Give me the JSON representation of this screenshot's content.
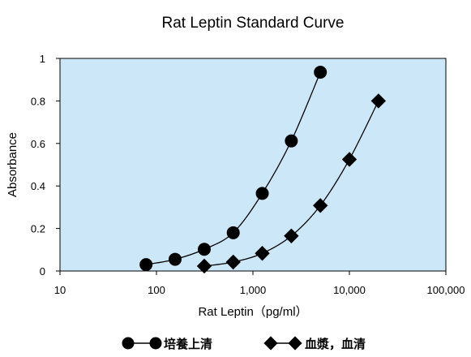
{
  "chart_data": {
    "type": "scatter",
    "title": "Rat Leptin Standard Curve",
    "xlabel": "Rat Leptin（pg/ml）",
    "ylabel": "Absorbance",
    "x_scale": "log",
    "xlim": [
      10,
      100000
    ],
    "ylim": [
      0,
      1
    ],
    "x_ticks": [
      "10",
      "100",
      "1,000",
      "10,000",
      "100,000"
    ],
    "y_ticks": [
      "0",
      "0.2",
      "0.4",
      "0.6",
      "0.8",
      "1"
    ],
    "grid": false,
    "legend_position": "bottom",
    "series": [
      {
        "name": "培養上清",
        "marker": "circle",
        "x": [
          78,
          156,
          313,
          625,
          1250,
          2500,
          5000
        ],
        "y": [
          0.03,
          0.055,
          0.102,
          0.18,
          0.365,
          0.612,
          0.935
        ]
      },
      {
        "name": "血漿，血清",
        "marker": "diamond",
        "x": [
          313,
          625,
          1250,
          2500,
          5000,
          10000,
          20000
        ],
        "y": [
          0.023,
          0.042,
          0.083,
          0.165,
          0.308,
          0.525,
          0.8
        ]
      }
    ],
    "colors": {
      "plot_background": "#cce8f8",
      "marker": "#000000",
      "line": "#000000"
    }
  }
}
